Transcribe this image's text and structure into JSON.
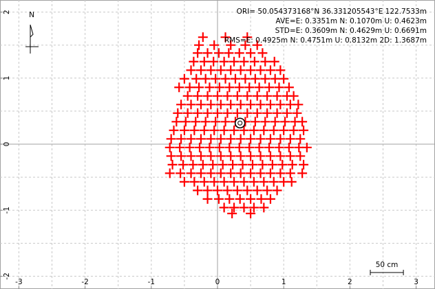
{
  "chart_data": {
    "type": "scatter",
    "annotations": [
      "ORI= 50.054373168°N  36.331205543°E 122.7533m",
      "AVE=E: 0.3351m N: 0.1070m U: 0.4623m",
      "STD=E: 0.3609m N: 0.4629m U: 0.6691m",
      "RMS=E: 0.4925m N: 0.4751m U: 0.8132m 2D: 1.3687m"
    ],
    "xlim": [
      -3.285,
      3.285
    ],
    "ylim": [
      -2.193,
      2.183
    ],
    "xticks": [
      -3,
      -2,
      -1,
      0,
      1,
      2,
      3
    ],
    "yticks": [
      -2,
      -1,
      0,
      1,
      2
    ],
    "xgrid": [
      -3,
      -2.5,
      -2,
      -1.5,
      -1,
      -0.5,
      0.5,
      1,
      1.5,
      2,
      2.5,
      3
    ],
    "ygrid": [
      -2,
      -1.5,
      -1,
      -0.5,
      0.5,
      1,
      1.5,
      2
    ],
    "grid": true,
    "marker": {
      "x": 0.34,
      "y": 0.32
    },
    "north_label": "N",
    "scale_bar": {
      "label": "50 cm",
      "length": 0.5
    },
    "series": [
      {
        "color": "#ff0000",
        "x": [
          -0.22,
          0.12,
          0.45,
          -0.28,
          -0.05,
          0.2,
          0.42,
          0.6,
          -0.3,
          -0.15,
          0.02,
          0.17,
          0.33,
          0.5,
          0.68,
          -0.36,
          -0.2,
          -0.06,
          0.1,
          0.25,
          0.4,
          0.56,
          0.72,
          0.86,
          -0.4,
          -0.25,
          -0.1,
          0.05,
          0.2,
          0.35,
          0.5,
          0.65,
          0.8,
          0.95,
          -0.5,
          -0.32,
          -0.18,
          -0.03,
          0.12,
          0.27,
          0.42,
          0.57,
          0.72,
          0.87,
          1.0,
          -0.58,
          -0.42,
          -0.28,
          -0.12,
          0.03,
          0.18,
          0.33,
          0.48,
          0.63,
          0.78,
          0.93,
          1.08,
          -0.45,
          -0.3,
          -0.15,
          0.0,
          0.15,
          0.3,
          0.45,
          0.6,
          0.75,
          0.9,
          1.05,
          1.15,
          -0.55,
          -0.4,
          -0.25,
          -0.1,
          0.05,
          0.2,
          0.35,
          0.5,
          0.65,
          0.8,
          0.95,
          1.1,
          1.22,
          -0.6,
          -0.45,
          -0.3,
          -0.15,
          0.0,
          0.15,
          0.3,
          0.45,
          0.6,
          0.75,
          0.9,
          1.05,
          1.2,
          -0.62,
          -0.48,
          -0.33,
          -0.18,
          -0.03,
          0.12,
          0.27,
          0.42,
          0.57,
          0.72,
          0.87,
          1.02,
          1.17,
          1.28,
          -0.66,
          -0.5,
          -0.35,
          -0.2,
          -0.05,
          0.1,
          0.25,
          0.4,
          0.55,
          0.7,
          0.85,
          1.0,
          1.15,
          1.3,
          -0.7,
          -0.55,
          -0.4,
          -0.25,
          -0.1,
          0.05,
          0.2,
          0.35,
          0.5,
          0.65,
          0.8,
          0.95,
          1.1,
          1.25,
          -0.72,
          -0.57,
          -0.42,
          -0.27,
          -0.12,
          0.03,
          0.18,
          0.33,
          0.48,
          0.63,
          0.78,
          0.93,
          1.08,
          1.23,
          1.35,
          -0.7,
          -0.55,
          -0.4,
          -0.25,
          -0.1,
          0.05,
          0.2,
          0.35,
          0.5,
          0.65,
          0.8,
          0.95,
          1.1,
          1.25,
          -0.68,
          -0.52,
          -0.37,
          -0.22,
          -0.07,
          0.08,
          0.23,
          0.38,
          0.53,
          0.68,
          0.83,
          0.98,
          1.13,
          1.3,
          -0.72,
          -0.56,
          -0.4,
          -0.25,
          -0.1,
          0.05,
          0.2,
          0.35,
          0.5,
          0.65,
          0.8,
          0.95,
          1.1,
          1.28,
          -0.5,
          -0.35,
          -0.2,
          -0.05,
          0.1,
          0.25,
          0.4,
          0.55,
          0.7,
          0.85,
          1.0,
          1.12,
          -0.3,
          -0.15,
          0.0,
          0.15,
          0.3,
          0.45,
          0.6,
          0.75,
          0.9,
          -0.15,
          0.02,
          0.18,
          0.34,
          0.5,
          0.66,
          0.8,
          0.1,
          0.25,
          0.4,
          0.55,
          0.7,
          0.22,
          0.5
        ],
        "values": [
          1.62,
          1.62,
          1.62,
          1.5,
          1.5,
          1.5,
          1.5,
          1.5,
          1.38,
          1.38,
          1.38,
          1.38,
          1.38,
          1.38,
          1.38,
          1.25,
          1.25,
          1.25,
          1.25,
          1.25,
          1.25,
          1.25,
          1.25,
          1.25,
          1.12,
          1.12,
          1.12,
          1.12,
          1.12,
          1.12,
          1.12,
          1.12,
          1.12,
          1.12,
          0.99,
          0.99,
          0.99,
          0.99,
          0.99,
          0.99,
          0.99,
          0.99,
          0.99,
          0.99,
          0.99,
          0.86,
          0.86,
          0.86,
          0.86,
          0.86,
          0.86,
          0.86,
          0.86,
          0.86,
          0.86,
          0.86,
          0.86,
          0.73,
          0.73,
          0.73,
          0.73,
          0.73,
          0.73,
          0.73,
          0.73,
          0.73,
          0.73,
          0.73,
          0.73,
          0.6,
          0.6,
          0.6,
          0.6,
          0.6,
          0.6,
          0.6,
          0.6,
          0.6,
          0.6,
          0.6,
          0.6,
          0.6,
          0.47,
          0.47,
          0.47,
          0.47,
          0.47,
          0.47,
          0.47,
          0.47,
          0.47,
          0.47,
          0.47,
          0.47,
          0.47,
          0.34,
          0.34,
          0.34,
          0.34,
          0.34,
          0.34,
          0.34,
          0.34,
          0.34,
          0.34,
          0.34,
          0.34,
          0.34,
          0.34,
          0.21,
          0.21,
          0.21,
          0.21,
          0.21,
          0.21,
          0.21,
          0.21,
          0.21,
          0.21,
          0.21,
          0.21,
          0.21,
          0.21,
          0.08,
          0.08,
          0.08,
          0.08,
          0.08,
          0.08,
          0.08,
          0.08,
          0.08,
          0.08,
          0.08,
          0.08,
          0.08,
          0.08,
          -0.05,
          -0.05,
          -0.05,
          -0.05,
          -0.05,
          -0.05,
          -0.05,
          -0.05,
          -0.05,
          -0.05,
          -0.05,
          -0.05,
          -0.05,
          -0.05,
          -0.05,
          -0.18,
          -0.18,
          -0.18,
          -0.18,
          -0.18,
          -0.18,
          -0.18,
          -0.18,
          -0.18,
          -0.18,
          -0.18,
          -0.18,
          -0.18,
          -0.18,
          -0.31,
          -0.31,
          -0.31,
          -0.31,
          -0.31,
          -0.31,
          -0.31,
          -0.31,
          -0.31,
          -0.31,
          -0.31,
          -0.31,
          -0.31,
          -0.31,
          -0.44,
          -0.44,
          -0.44,
          -0.44,
          -0.44,
          -0.44,
          -0.44,
          -0.44,
          -0.44,
          -0.44,
          -0.44,
          -0.44,
          -0.44,
          -0.44,
          -0.57,
          -0.57,
          -0.57,
          -0.57,
          -0.57,
          -0.57,
          -0.57,
          -0.57,
          -0.57,
          -0.57,
          -0.57,
          -0.57,
          -0.7,
          -0.7,
          -0.7,
          -0.7,
          -0.7,
          -0.7,
          -0.7,
          -0.7,
          -0.7,
          -0.83,
          -0.83,
          -0.83,
          -0.83,
          -0.83,
          -0.83,
          -0.83,
          -0.96,
          -0.96,
          -0.96,
          -0.96,
          -0.96,
          -1.05,
          -1.05
        ]
      }
    ]
  }
}
